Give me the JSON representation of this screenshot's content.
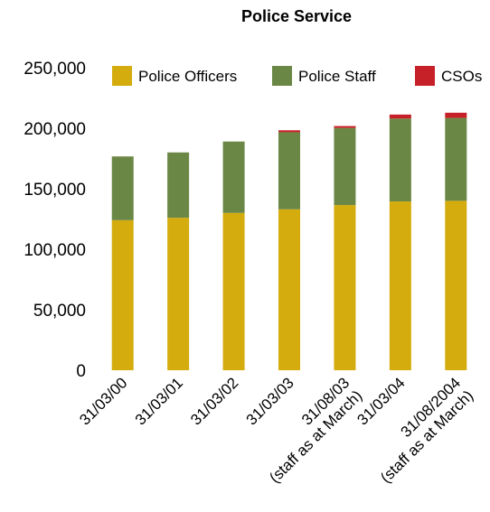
{
  "chart_data": {
    "type": "bar",
    "stacked": true,
    "title": "Police Service",
    "xlabel": "",
    "ylabel": "",
    "ylim": [
      0,
      250000
    ],
    "yticks": [
      "0",
      "50,000",
      "100,000",
      "150,000",
      "200,000",
      "250,000"
    ],
    "ytick_values": [
      0,
      50000,
      100000,
      150000,
      200000,
      250000
    ],
    "categories": [
      [
        "31/03/00"
      ],
      [
        "31/03/01"
      ],
      [
        "31/03/02"
      ],
      [
        "31/03/03"
      ],
      [
        "31/08/03",
        "(staff as at March)"
      ],
      [
        "31/03/04"
      ],
      [
        "31/08/2004",
        "(staff as at March)"
      ]
    ],
    "series": [
      {
        "name": "Police Officers",
        "color": "#d4ac0d",
        "values": [
          124000,
          126000,
          130000,
          133000,
          136500,
          139500,
          140000
        ]
      },
      {
        "name": "Police Staff",
        "color": "#6b8745",
        "values": [
          52700,
          54000,
          59000,
          63700,
          63700,
          68500,
          68500
        ]
      },
      {
        "name": "CSOs",
        "color": "#c62128",
        "values": [
          0,
          0,
          0,
          1600,
          1600,
          3300,
          4300
        ]
      }
    ],
    "legend": "top",
    "grid": false
  }
}
